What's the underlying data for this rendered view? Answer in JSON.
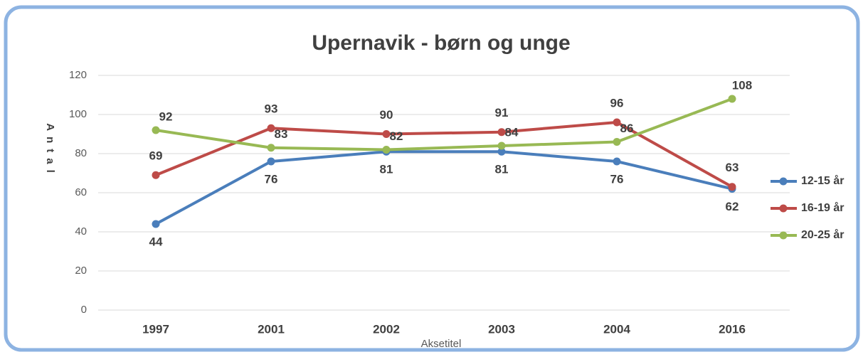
{
  "chart_data": {
    "type": "line",
    "title": "Upernavik - børn og unge",
    "ylabel": "Antal",
    "xlabel": "Aksetitel",
    "categories": [
      "1997",
      "2001",
      "2002",
      "2003",
      "2004",
      "2016"
    ],
    "series": [
      {
        "name": "12-15 år",
        "color": "#4a7ebb",
        "values": [
          44,
          76,
          81,
          81,
          76,
          62
        ]
      },
      {
        "name": "16-19 år",
        "color": "#be4b48",
        "values": [
          69,
          93,
          90,
          91,
          96,
          63
        ]
      },
      {
        "name": "20-25 år",
        "color": "#98b954",
        "values": [
          92,
          83,
          82,
          84,
          86,
          108
        ]
      }
    ],
    "ylim": [
      0,
      120
    ],
    "yticks": [
      0,
      20,
      40,
      60,
      80,
      100,
      120
    ],
    "grid": true,
    "legend": "right"
  }
}
